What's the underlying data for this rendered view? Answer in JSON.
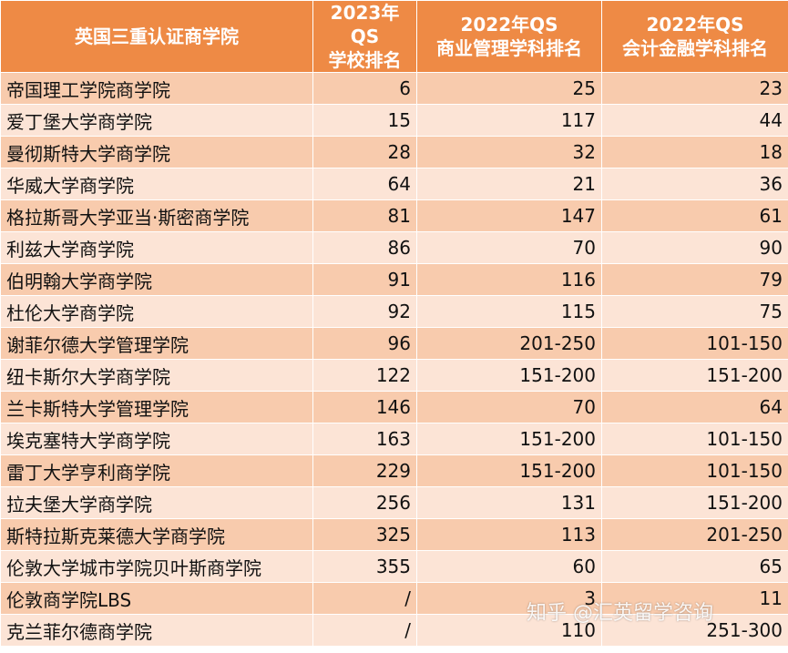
{
  "table": {
    "headers": [
      [
        "英国三重认证商学院"
      ],
      [
        "2023年QS",
        "学校排名"
      ],
      [
        "2022年QS",
        "商业管理学科排名"
      ],
      [
        "2022年QS",
        "会计金融学科排名"
      ]
    ],
    "rows": [
      [
        "帝国理工学院商学院",
        "6",
        "25",
        "23"
      ],
      [
        "爱丁堡大学商学院",
        "15",
        "117",
        "44"
      ],
      [
        "曼彻斯特大学商学院",
        "28",
        "32",
        "18"
      ],
      [
        "华威大学商学院",
        "64",
        "21",
        "36"
      ],
      [
        "格拉斯哥大学亚当·斯密商学院",
        "81",
        "147",
        "61"
      ],
      [
        "利兹大学商学院",
        "86",
        "70",
        "90"
      ],
      [
        "伯明翰大学商学院",
        "91",
        "116",
        "79"
      ],
      [
        "杜伦大学商学院",
        "92",
        "115",
        "75"
      ],
      [
        "谢菲尔德大学管理学院",
        "96",
        "201-250",
        "101-150"
      ],
      [
        "纽卡斯尔大学商学院",
        "122",
        "151-200",
        "151-200"
      ],
      [
        "兰卡斯特大学管理学院",
        "146",
        "70",
        "64"
      ],
      [
        "埃克塞特大学商学院",
        "163",
        "151-200",
        "101-150"
      ],
      [
        "雷丁大学亨利商学院",
        "229",
        "151-200",
        "101-150"
      ],
      [
        "拉夫堡大学商学院",
        "256",
        "131",
        "151-200"
      ],
      [
        "斯特拉斯克莱德大学商学院",
        "325",
        "113",
        "201-250"
      ],
      [
        "伦敦大学城市学院贝叶斯商学院",
        "355",
        "60",
        "65"
      ],
      [
        "伦敦商学院LBS",
        "/",
        "3",
        "11"
      ],
      [
        "克兰菲尔德商学院",
        "/",
        "110",
        "251-300"
      ]
    ]
  },
  "watermark": "知乎 @汇英留学咨询",
  "colors": {
    "header_bg": "#ee8a45",
    "row_odd": "#f8cbad",
    "row_even": "#fce4d6"
  }
}
